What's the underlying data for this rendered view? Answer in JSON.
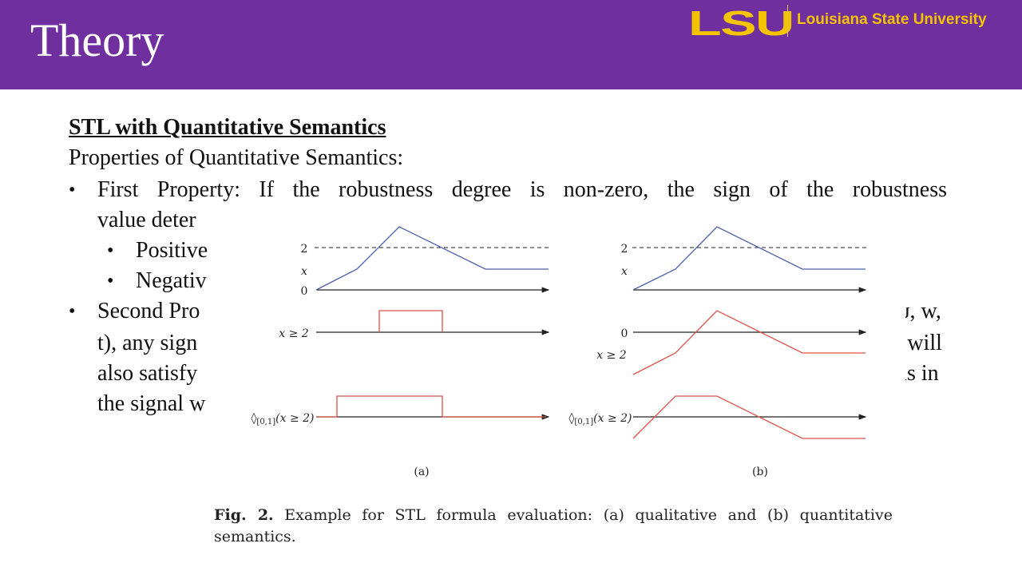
{
  "header": {
    "title": "Theory",
    "logo_text": "LSU",
    "university_name": "Louisiana State University"
  },
  "content": {
    "section_heading": "STL with Quantitative Semantics",
    "intro": "Properties of Quantitative Semantics:",
    "first_property": "First Property: If the robustness degree is non-zero, the sign of the robustness",
    "first_property_cont": "value deter",
    "sub_bullets": [
      "Positive",
      "Negativ"
    ],
    "second_property_lines": [
      "Second Pro",
      "t), any sign",
      "also satisfy",
      "the signal w"
    ],
    "second_property_right": [
      "ψ, w,",
      ") will",
      "ns in"
    ]
  },
  "figure": {
    "panel_labels": [
      "(a)",
      "(b)"
    ],
    "y_labels": {
      "level": "2",
      "signal": "x",
      "zero": "0",
      "predicate": "x ≥ 2",
      "eventually_prefix": "◊",
      "eventually_sub": "[0,1]",
      "eventually_suffix": "(x ≥ 2)"
    },
    "caption_bold": "Fig. 2.",
    "caption_text": "Example for STL formula evaluation: (a) qualitative and (b) quantitative semantics.",
    "colors": {
      "signal": "#4a5fa8",
      "robustness": "#d9534a",
      "axis": "#222222"
    }
  }
}
